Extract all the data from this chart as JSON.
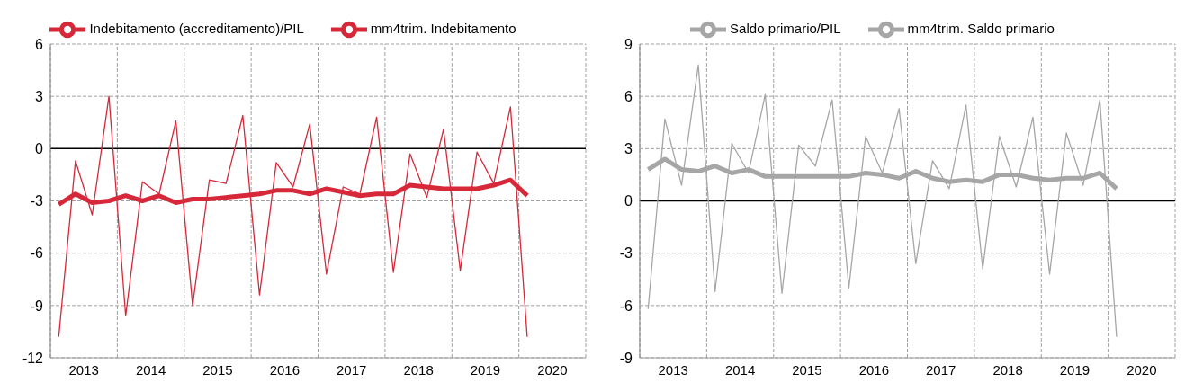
{
  "chart_data": [
    {
      "type": "line",
      "x": [
        2013.125,
        2013.375,
        2013.625,
        2013.875,
        2014.125,
        2014.375,
        2014.625,
        2014.875,
        2015.125,
        2015.375,
        2015.625,
        2015.875,
        2016.125,
        2016.375,
        2016.625,
        2016.875,
        2017.125,
        2017.375,
        2017.625,
        2017.875,
        2018.125,
        2018.375,
        2018.625,
        2018.875,
        2019.125,
        2019.375,
        2019.625,
        2019.875,
        2020.125
      ],
      "series": [
        {
          "name": "Indebitamento (accreditamento)/PIL",
          "color": "#d62839",
          "values": [
            -10.8,
            -0.7,
            -3.8,
            3.0,
            -9.6,
            -1.9,
            -2.6,
            1.6,
            -9.0,
            -1.8,
            -2.0,
            1.9,
            -8.4,
            -0.8,
            -2.2,
            1.4,
            -7.2,
            -2.2,
            -2.6,
            1.8,
            -7.1,
            -0.3,
            -2.8,
            1.1,
            -7.0,
            -0.2,
            -2.0,
            2.4,
            -10.8
          ]
        },
        {
          "name": "mm4trim. Indebitamento",
          "color": "#d62839",
          "values": [
            -3.2,
            -2.6,
            -3.1,
            -3.0,
            -2.7,
            -3.0,
            -2.7,
            -3.1,
            -2.9,
            -2.9,
            -2.8,
            -2.7,
            -2.6,
            -2.4,
            -2.4,
            -2.6,
            -2.3,
            -2.5,
            -2.7,
            -2.6,
            -2.6,
            -2.1,
            -2.2,
            -2.3,
            -2.3,
            -2.3,
            -2.1,
            -1.8,
            -2.7
          ]
        }
      ],
      "xlim": [
        2013,
        2021
      ],
      "xticks": [
        {
          "value": 2013,
          "label": null
        },
        {
          "value": 2013.5,
          "label": "2013"
        },
        {
          "value": 2014,
          "label": null
        },
        {
          "value": 2014.5,
          "label": "2014"
        },
        {
          "value": 2015,
          "label": null
        },
        {
          "value": 2015.5,
          "label": "2015"
        },
        {
          "value": 2016,
          "label": null
        },
        {
          "value": 2016.5,
          "label": "2016"
        },
        {
          "value": 2017,
          "label": null
        },
        {
          "value": 2017.5,
          "label": "2017"
        },
        {
          "value": 2018,
          "label": null
        },
        {
          "value": 2018.5,
          "label": "2018"
        },
        {
          "value": 2019,
          "label": null
        },
        {
          "value": 2019.5,
          "label": "2019"
        },
        {
          "value": 2020,
          "label": null
        },
        {
          "value": 2020.5,
          "label": "2020"
        },
        {
          "value": 2021,
          "label": null
        }
      ],
      "ylim": [
        -12,
        6
      ],
      "yticks": [
        -12,
        -9,
        -6,
        -3,
        0,
        3,
        6
      ],
      "ref_lines": [
        {
          "axis": "y",
          "value": 0,
          "color": "#000000"
        }
      ],
      "grid": true,
      "legend": "top",
      "marker": "none"
    },
    {
      "type": "line",
      "x": [
        2013.125,
        2013.375,
        2013.625,
        2013.875,
        2014.125,
        2014.375,
        2014.625,
        2014.875,
        2015.125,
        2015.375,
        2015.625,
        2015.875,
        2016.125,
        2016.375,
        2016.625,
        2016.875,
        2017.125,
        2017.375,
        2017.625,
        2017.875,
        2018.125,
        2018.375,
        2018.625,
        2018.875,
        2019.125,
        2019.375,
        2019.625,
        2019.875,
        2020.125
      ],
      "series": [
        {
          "name": "Saldo primario/PIL",
          "color": "#a6a6a6",
          "values": [
            -6.2,
            4.7,
            0.9,
            7.8,
            -5.2,
            3.3,
            1.6,
            6.1,
            -5.3,
            3.2,
            2.0,
            5.8,
            -5.0,
            3.7,
            1.6,
            5.3,
            -3.6,
            2.3,
            0.7,
            5.5,
            -3.9,
            3.7,
            0.8,
            4.8,
            -4.2,
            3.9,
            0.9,
            5.8,
            -7.8
          ]
        },
        {
          "name": "mm4trim. Saldo primario",
          "color": "#a6a6a6",
          "values": [
            1.8,
            2.4,
            1.8,
            1.7,
            2.0,
            1.6,
            1.8,
            1.4,
            1.4,
            1.4,
            1.4,
            1.4,
            1.4,
            1.6,
            1.5,
            1.3,
            1.7,
            1.3,
            1.1,
            1.2,
            1.1,
            1.5,
            1.5,
            1.3,
            1.2,
            1.3,
            1.3,
            1.6,
            0.7
          ]
        }
      ],
      "xlim": [
        2013,
        2021
      ],
      "xticks": [
        {
          "value": 2013,
          "label": null
        },
        {
          "value": 2013.5,
          "label": "2013"
        },
        {
          "value": 2014,
          "label": null
        },
        {
          "value": 2014.5,
          "label": "2014"
        },
        {
          "value": 2015,
          "label": null
        },
        {
          "value": 2015.5,
          "label": "2015"
        },
        {
          "value": 2016,
          "label": null
        },
        {
          "value": 2016.5,
          "label": "2016"
        },
        {
          "value": 2017,
          "label": null
        },
        {
          "value": 2017.5,
          "label": "2017"
        },
        {
          "value": 2018,
          "label": null
        },
        {
          "value": 2018.5,
          "label": "2018"
        },
        {
          "value": 2019,
          "label": null
        },
        {
          "value": 2019.5,
          "label": "2019"
        },
        {
          "value": 2020,
          "label": null
        },
        {
          "value": 2020.5,
          "label": "2020"
        },
        {
          "value": 2021,
          "label": null
        }
      ],
      "ylim": [
        -9,
        9
      ],
      "yticks": [
        -9,
        -6,
        -3,
        0,
        3,
        6,
        9
      ],
      "ref_lines": [
        {
          "axis": "y",
          "value": 0,
          "color": "#000000"
        }
      ],
      "grid": true,
      "legend": "top",
      "marker": "none"
    }
  ]
}
